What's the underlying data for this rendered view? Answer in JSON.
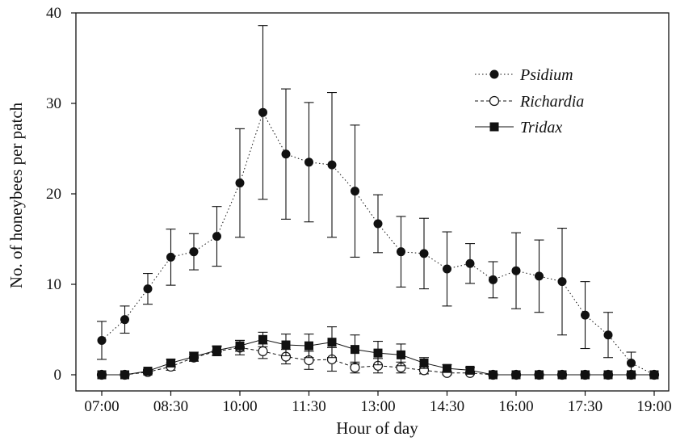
{
  "chart_data": {
    "type": "line",
    "xlabel": "Hour of day",
    "ylabel": "No. of honeybees per patch",
    "x_ticks": [
      "07:00",
      "08:30",
      "10:00",
      "11:30",
      "13:00",
      "14:30",
      "16:00",
      "17:30",
      "19:00"
    ],
    "x": [
      "07:00",
      "07:30",
      "08:00",
      "08:30",
      "09:00",
      "09:30",
      "10:00",
      "10:30",
      "11:00",
      "11:30",
      "12:00",
      "12:30",
      "13:00",
      "13:30",
      "14:00",
      "14:30",
      "15:00",
      "15:30",
      "16:00",
      "16:30",
      "17:00",
      "17:30",
      "18:00",
      "18:30",
      "19:00"
    ],
    "ylim": [
      0,
      40
    ],
    "y_ticks": [
      0,
      10,
      20,
      30,
      40
    ],
    "legend_position": "top-right",
    "series": [
      {
        "name": "Psidium",
        "marker": "filled-circle",
        "line": "dotted",
        "values": [
          3.8,
          6.1,
          9.5,
          13.0,
          13.6,
          15.3,
          21.2,
          29.0,
          24.4,
          23.5,
          23.2,
          20.3,
          16.7,
          13.6,
          13.4,
          11.7,
          12.3,
          10.5,
          11.5,
          10.9,
          10.3,
          6.6,
          4.4,
          1.3,
          0.0
        ],
        "errors": [
          2.1,
          1.5,
          1.7,
          3.1,
          2.0,
          3.3,
          6.0,
          9.6,
          7.2,
          6.6,
          8.0,
          7.3,
          3.2,
          3.9,
          3.9,
          4.1,
          2.2,
          2.0,
          4.2,
          4.0,
          5.9,
          3.7,
          2.5,
          1.2,
          0.0
        ]
      },
      {
        "name": "Richardia",
        "marker": "open-circle",
        "line": "dashed",
        "values": [
          0.0,
          0.0,
          0.3,
          0.9,
          1.9,
          2.6,
          3.0,
          2.6,
          2.0,
          1.6,
          1.7,
          0.8,
          1.0,
          0.8,
          0.5,
          0.2,
          0.2,
          0.0,
          0.0,
          0.0,
          0.0,
          0.0,
          0.0,
          0.0,
          0.0
        ],
        "errors": [
          0.0,
          0.0,
          0.2,
          0.4,
          0.4,
          0.5,
          0.8,
          0.8,
          0.8,
          1.0,
          1.3,
          0.6,
          0.8,
          0.6,
          0.4,
          0.2,
          0.1,
          0.0,
          0.0,
          0.0,
          0.0,
          0.0,
          0.0,
          0.0,
          0.0
        ]
      },
      {
        "name": "Tridax",
        "marker": "filled-square",
        "line": "solid",
        "values": [
          0.0,
          0.0,
          0.4,
          1.3,
          2.0,
          2.7,
          3.2,
          3.9,
          3.3,
          3.2,
          3.6,
          2.8,
          2.4,
          2.2,
          1.3,
          0.7,
          0.5,
          0.0,
          0.0,
          0.0,
          0.0,
          0.0,
          0.0,
          0.0,
          0.0
        ],
        "errors": [
          0.0,
          0.0,
          0.2,
          0.4,
          0.5,
          0.5,
          0.6,
          0.8,
          1.2,
          1.3,
          1.7,
          1.6,
          1.3,
          1.2,
          0.6,
          0.4,
          0.3,
          0.0,
          0.0,
          0.0,
          0.0,
          0.0,
          0.0,
          0.0,
          0.0
        ]
      }
    ]
  }
}
